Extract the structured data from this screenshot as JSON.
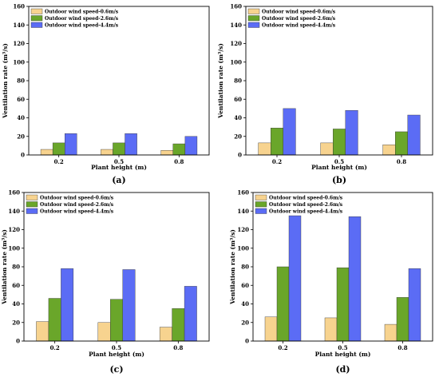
{
  "legend": {
    "entries": [
      "Outdoor wind speed-0.6m/s",
      "Outdoor wind speed-2.6m/s",
      "Outdoor wind speed-4.4m/s"
    ]
  },
  "colors": {
    "series": [
      "#f7d38f",
      "#6aa62a",
      "#5b6cf5"
    ],
    "border": "#000000"
  },
  "chart_data": [
    {
      "panel_label": "(a)",
      "type": "bar",
      "categories": [
        "0.2",
        "0.5",
        "0.8"
      ],
      "series": [
        {
          "name": "Outdoor wind speed-0.6m/s",
          "values": [
            6,
            6,
            5
          ]
        },
        {
          "name": "Outdoor wind speed-2.6m/s",
          "values": [
            13,
            13,
            12
          ]
        },
        {
          "name": "Outdoor wind speed-4.4m/s",
          "values": [
            23,
            23,
            20
          ]
        }
      ],
      "xlabel": "Plant height (m)",
      "ylabel": "Ventilation rate (m³/s)",
      "ylim": [
        0,
        160
      ],
      "yticks": [
        0,
        20,
        40,
        60,
        80,
        100,
        120,
        140,
        160
      ],
      "legend_position": "top-left",
      "grid": false
    },
    {
      "panel_label": "(b)",
      "type": "bar",
      "categories": [
        "0.2",
        "0.5",
        "0.8"
      ],
      "series": [
        {
          "name": "Outdoor wind speed-0.6m/s",
          "values": [
            13,
            13,
            11
          ]
        },
        {
          "name": "Outdoor wind speed-2.6m/s",
          "values": [
            29,
            28,
            25
          ]
        },
        {
          "name": "Outdoor wind speed-4.4m/s",
          "values": [
            50,
            48,
            43
          ]
        }
      ],
      "xlabel": "Plant height (m)",
      "ylabel": "Ventilation rate (m³/s)",
      "ylim": [
        0,
        160
      ],
      "yticks": [
        0,
        20,
        40,
        60,
        80,
        100,
        120,
        140,
        160
      ],
      "legend_position": "top-left",
      "grid": false
    },
    {
      "panel_label": "(c)",
      "type": "bar",
      "categories": [
        "0.2",
        "0.5",
        "0.8"
      ],
      "series": [
        {
          "name": "Outdoor wind speed-0.6m/s",
          "values": [
            21,
            20,
            15
          ]
        },
        {
          "name": "Outdoor wind speed-2.6m/s",
          "values": [
            46,
            45,
            35
          ]
        },
        {
          "name": "Outdoor wind speed-4.4m/s",
          "values": [
            78,
            77,
            59
          ]
        }
      ],
      "xlabel": "Plant height (m)",
      "ylabel": "Ventilation rate (m³/s)",
      "ylim": [
        0,
        160
      ],
      "yticks": [
        0,
        20,
        40,
        60,
        80,
        100,
        120,
        140,
        160
      ],
      "legend_position": "top-left",
      "grid": false
    },
    {
      "panel_label": "(d)",
      "type": "bar",
      "categories": [
        "0.2",
        "0.5",
        "0.8"
      ],
      "series": [
        {
          "name": "Outdoor wind speed-0.6m/s",
          "values": [
            26,
            25,
            18
          ]
        },
        {
          "name": "Outdoor wind speed-2.6m/s",
          "values": [
            80,
            79,
            47
          ]
        },
        {
          "name": "Outdoor wind speed-4.4m/s",
          "values": [
            135,
            134,
            78
          ]
        }
      ],
      "xlabel": "Plant height (m)",
      "ylabel": "Ventilation rate (m³/s)",
      "ylim": [
        0,
        160
      ],
      "yticks": [
        0,
        20,
        40,
        60,
        80,
        100,
        120,
        140,
        160
      ],
      "legend_position": "top-left",
      "grid": false
    }
  ]
}
